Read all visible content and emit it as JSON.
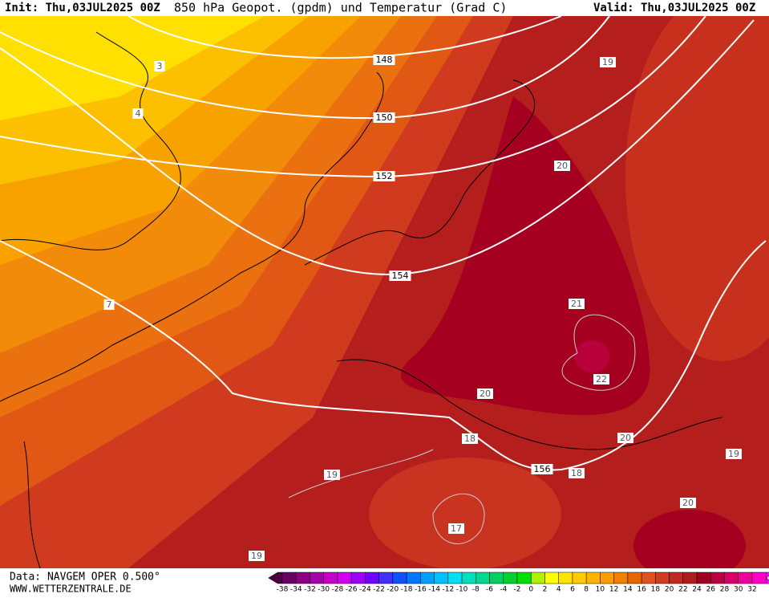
{
  "header": {
    "init": "Init: Thu,03JUL2025 00Z",
    "title": "850 hPa Geopot. (gpdm) und Temperatur (Grad C)",
    "valid": "Valid: Thu,03JUL2025 00Z"
  },
  "map": {
    "geopotential_labels": [
      "148",
      "150",
      "152",
      "154",
      "156"
    ],
    "temperature_labels": [
      "3",
      "4",
      "7",
      "19",
      "20",
      "21",
      "22",
      "20",
      "20",
      "18",
      "18",
      "19",
      "19",
      "17",
      "20",
      "19"
    ]
  },
  "footer": {
    "data": "Data: NAVGEM OPER 0.500°",
    "site": "WWW.WETTERZENTRALE.DE"
  },
  "colorbar": {
    "labels": [
      "-38",
      "-34",
      "-32",
      "-30",
      "-28",
      "-26",
      "-24",
      "-22",
      "-20",
      "-18",
      "-16",
      "-14",
      "-12",
      "-10",
      "-8",
      "-6",
      "-4",
      "-2",
      "0",
      "2",
      "4",
      "6",
      "8",
      "10",
      "12",
      "14",
      "16",
      "18",
      "20",
      "22",
      "24",
      "26",
      "28",
      "30",
      "32"
    ],
    "colors": [
      "#4a0040",
      "#6a0060",
      "#8a0080",
      "#a800a8",
      "#c800c8",
      "#d000f0",
      "#a000ff",
      "#7000ff",
      "#4030ff",
      "#1050ff",
      "#0078ff",
      "#00a0ff",
      "#00c0ff",
      "#00e0f0",
      "#00e0c0",
      "#00d890",
      "#00d060",
      "#00d030",
      "#00e000",
      "#b0f000",
      "#ffff00",
      "#ffe400",
      "#ffcc00",
      "#ffb400",
      "#ff9c00",
      "#f08000",
      "#e86800",
      "#e05020",
      "#d03c20",
      "#c02a20",
      "#b01c20",
      "#a00020",
      "#b80040",
      "#d80068",
      "#f00098",
      "#ff00c8",
      "#ff00ff"
    ]
  }
}
